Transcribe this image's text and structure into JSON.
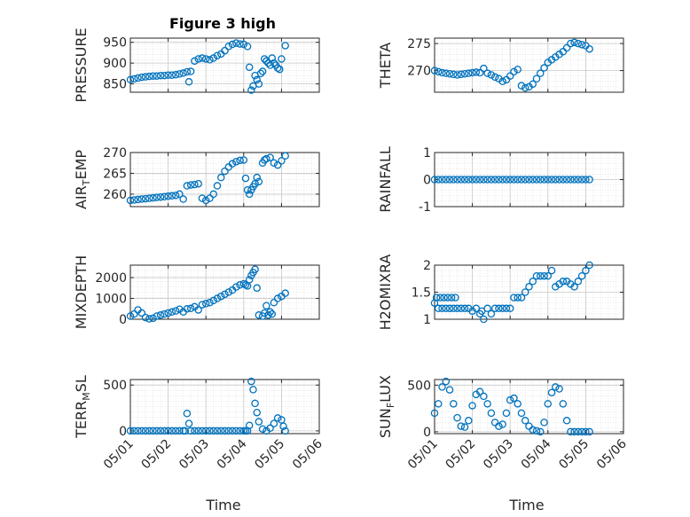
{
  "figure": {
    "title": "Figure 3 high",
    "xlabel": "Time"
  },
  "colors": {
    "marker": "#0072BD",
    "axis": "#262626",
    "grid": "#d9d9d9"
  },
  "chart_data": [
    {
      "id": "pressure",
      "type": "scatter",
      "ylabel": "PRESSURE",
      "ylim": [
        830,
        960
      ],
      "yticks": [
        850,
        900,
        950
      ],
      "xlim": [
        0,
        5
      ],
      "xticklabels": [
        "05/01",
        "05/02",
        "05/03",
        "05/04",
        "05/05",
        "05/06"
      ],
      "title": "Figure 3 high",
      "grid": true,
      "x": [
        0,
        0.1,
        0.2,
        0.3,
        0.4,
        0.5,
        0.6,
        0.7,
        0.8,
        0.9,
        1.0,
        1.1,
        1.2,
        1.3,
        1.4,
        1.5,
        1.55,
        1.6,
        1.7,
        1.8,
        1.9,
        2.0,
        2.1,
        2.2,
        2.3,
        2.4,
        2.5,
        2.6,
        2.7,
        2.8,
        2.9,
        3.0,
        3.1,
        3.15,
        3.2,
        3.25,
        3.3,
        3.35,
        3.4,
        3.45,
        3.5,
        3.55,
        3.6,
        3.65,
        3.7,
        3.75,
        3.8,
        3.85,
        3.9,
        3.95,
        4.0,
        4.1
      ],
      "y": [
        860,
        862,
        864,
        866,
        867,
        868,
        869,
        869,
        870,
        870,
        871,
        871,
        872,
        874,
        876,
        879,
        855,
        880,
        905,
        910,
        912,
        910,
        908,
        912,
        918,
        922,
        930,
        940,
        945,
        948,
        946,
        945,
        940,
        890,
        835,
        845,
        870,
        860,
        850,
        875,
        880,
        910,
        905,
        900,
        895,
        912,
        900,
        895,
        888,
        885,
        910,
        942
      ]
    },
    {
      "id": "theta",
      "type": "scatter",
      "ylabel": "THETA",
      "ylim": [
        266,
        276
      ],
      "yticks": [
        270,
        275
      ],
      "xlim": [
        0,
        5
      ],
      "grid": true,
      "x": [
        0,
        0.1,
        0.2,
        0.3,
        0.4,
        0.5,
        0.6,
        0.7,
        0.8,
        0.9,
        1.0,
        1.1,
        1.2,
        1.3,
        1.4,
        1.5,
        1.6,
        1.7,
        1.8,
        1.9,
        2.0,
        2.1,
        2.2,
        2.3,
        2.4,
        2.5,
        2.6,
        2.7,
        2.8,
        2.9,
        3.0,
        3.1,
        3.2,
        3.3,
        3.4,
        3.5,
        3.6,
        3.7,
        3.8,
        3.9,
        4.0,
        4.1
      ],
      "y": [
        270,
        269.8,
        269.6,
        269.5,
        269.4,
        269.3,
        269.2,
        269.3,
        269.4,
        269.5,
        269.6,
        269.7,
        269.6,
        270.4,
        269.5,
        269.2,
        268.8,
        268.5,
        268,
        268.3,
        269,
        269.8,
        270.2,
        267.2,
        266.8,
        267.0,
        267.5,
        268.5,
        269.5,
        270.5,
        271.5,
        272.0,
        272.5,
        273,
        273.5,
        274.2,
        275,
        275.2,
        275,
        274.8,
        274.6,
        274
      ]
    },
    {
      "id": "air_temp",
      "type": "scatter",
      "ylabel": "AIR_TEMP",
      "ylim": [
        257,
        270
      ],
      "yticks": [
        260,
        265,
        270
      ],
      "xlim": [
        0,
        5
      ],
      "grid": true,
      "x": [
        0,
        0.1,
        0.2,
        0.3,
        0.4,
        0.5,
        0.6,
        0.7,
        0.8,
        0.9,
        1.0,
        1.1,
        1.2,
        1.3,
        1.4,
        1.5,
        1.6,
        1.7,
        1.8,
        1.9,
        2.0,
        2.1,
        2.2,
        2.3,
        2.4,
        2.5,
        2.6,
        2.7,
        2.8,
        2.9,
        3.0,
        3.05,
        3.1,
        3.15,
        3.2,
        3.25,
        3.3,
        3.35,
        3.4,
        3.5,
        3.55,
        3.6,
        3.7,
        3.8,
        3.9,
        4.0,
        4.1
      ],
      "y": [
        258.5,
        258.6,
        258.7,
        258.8,
        258.9,
        259,
        259.1,
        259.2,
        259.3,
        259.4,
        259.5,
        259.6,
        259.7,
        260,
        258.8,
        262,
        262.2,
        262.3,
        262.5,
        259,
        258.5,
        259,
        260,
        262,
        264,
        265.5,
        266.5,
        267.3,
        267.8,
        268.1,
        268.2,
        263.8,
        261,
        260,
        261,
        261.8,
        262.5,
        264,
        263,
        267.5,
        268.2,
        268.5,
        268.8,
        267.5,
        267,
        268,
        269.2
      ]
    },
    {
      "id": "rainfall",
      "type": "scatter",
      "ylabel": "RAINFALL",
      "ylim": [
        -1,
        1
      ],
      "yticks": [
        -1,
        0,
        1
      ],
      "xlim": [
        0,
        5
      ],
      "grid": true,
      "x": [
        0,
        0.1,
        0.2,
        0.3,
        0.4,
        0.5,
        0.6,
        0.7,
        0.8,
        0.9,
        1.0,
        1.1,
        1.2,
        1.3,
        1.4,
        1.5,
        1.6,
        1.7,
        1.8,
        1.9,
        2.0,
        2.1,
        2.2,
        2.3,
        2.4,
        2.5,
        2.6,
        2.7,
        2.8,
        2.9,
        3.0,
        3.1,
        3.2,
        3.3,
        3.4,
        3.5,
        3.6,
        3.7,
        3.8,
        3.9,
        4.0,
        4.1
      ],
      "y": [
        0,
        0,
        0,
        0,
        0,
        0,
        0,
        0,
        0,
        0,
        0,
        0,
        0,
        0,
        0,
        0,
        0,
        0,
        0,
        0,
        0,
        0,
        0,
        0,
        0,
        0,
        0,
        0,
        0,
        0,
        0,
        0,
        0,
        0,
        0,
        0,
        0,
        0,
        0,
        0,
        0,
        0
      ]
    },
    {
      "id": "mixdepth",
      "type": "scatter",
      "ylabel": "MIXDEPTH",
      "ylim": [
        0,
        2600
      ],
      "yticks": [
        0,
        1000,
        2000
      ],
      "xlim": [
        0,
        5
      ],
      "grid": true,
      "x": [
        0,
        0.1,
        0.2,
        0.3,
        0.4,
        0.5,
        0.6,
        0.7,
        0.8,
        0.9,
        1.0,
        1.1,
        1.2,
        1.3,
        1.4,
        1.5,
        1.6,
        1.7,
        1.8,
        1.9,
        2.0,
        2.1,
        2.2,
        2.3,
        2.4,
        2.5,
        2.6,
        2.7,
        2.8,
        2.9,
        3.0,
        3.05,
        3.1,
        3.15,
        3.2,
        3.25,
        3.3,
        3.35,
        3.4,
        3.5,
        3.55,
        3.6,
        3.65,
        3.7,
        3.75,
        3.8,
        3.9,
        4.0,
        4.1
      ],
      "y": [
        150,
        250,
        450,
        300,
        80,
        20,
        50,
        150,
        200,
        250,
        300,
        350,
        400,
        480,
        350,
        500,
        520,
        600,
        450,
        700,
        750,
        800,
        900,
        1000,
        1100,
        1200,
        1300,
        1400,
        1550,
        1650,
        1700,
        1650,
        1600,
        1900,
        2100,
        2250,
        2400,
        1500,
        200,
        150,
        300,
        650,
        200,
        350,
        250,
        800,
        1000,
        1100,
        1250
      ]
    },
    {
      "id": "h2omixra",
      "type": "scatter",
      "ylabel": "H2OMIXRA",
      "ylim": [
        1,
        2
      ],
      "yticks": [
        1,
        1.5,
        2
      ],
      "xlim": [
        0,
        5
      ],
      "grid": true,
      "x": [
        0,
        0.05,
        0.1,
        0.15,
        0.2,
        0.25,
        0.3,
        0.35,
        0.4,
        0.45,
        0.5,
        0.55,
        0.6,
        0.7,
        0.8,
        0.9,
        1.0,
        1.1,
        1.2,
        1.25,
        1.3,
        1.4,
        1.5,
        1.6,
        1.7,
        1.8,
        1.9,
        2.0,
        2.1,
        2.2,
        2.3,
        2.4,
        2.5,
        2.6,
        2.7,
        2.8,
        2.9,
        3.0,
        3.1,
        3.2,
        3.3,
        3.4,
        3.5,
        3.6,
        3.7,
        3.8,
        3.9,
        4.0,
        4.1
      ],
      "y": [
        1.3,
        1.4,
        1.2,
        1.4,
        1.2,
        1.4,
        1.2,
        1.4,
        1.2,
        1.4,
        1.2,
        1.4,
        1.2,
        1.2,
        1.2,
        1.2,
        1.15,
        1.2,
        1.1,
        1.15,
        1.0,
        1.2,
        1.1,
        1.2,
        1.2,
        1.2,
        1.2,
        1.2,
        1.4,
        1.4,
        1.4,
        1.5,
        1.6,
        1.7,
        1.8,
        1.8,
        1.8,
        1.8,
        1.9,
        1.6,
        1.65,
        1.7,
        1.7,
        1.65,
        1.6,
        1.7,
        1.8,
        1.9,
        2.0
      ]
    },
    {
      "id": "terr_msl",
      "type": "scatter",
      "ylabel": "TERR_MSL",
      "ylim": [
        -30,
        560
      ],
      "yticks": [
        0,
        500
      ],
      "xlim": [
        0,
        5
      ],
      "grid": true,
      "x": [
        0,
        0.1,
        0.2,
        0.3,
        0.4,
        0.5,
        0.6,
        0.7,
        0.8,
        0.9,
        1.0,
        1.1,
        1.2,
        1.3,
        1.4,
        1.45,
        1.5,
        1.55,
        1.6,
        1.7,
        1.8,
        1.9,
        2.0,
        2.1,
        2.2,
        2.3,
        2.4,
        2.5,
        2.6,
        2.7,
        2.8,
        2.9,
        3.0,
        3.05,
        3.1,
        3.15,
        3.2,
        3.25,
        3.3,
        3.35,
        3.4,
        3.5,
        3.6,
        3.7,
        3.8,
        3.9,
        4.0,
        4.05,
        4.1
      ],
      "y": [
        0,
        0,
        0,
        0,
        0,
        0,
        0,
        0,
        0,
        0,
        0,
        0,
        0,
        0,
        0,
        0,
        190,
        80,
        0,
        0,
        0,
        0,
        0,
        0,
        0,
        0,
        0,
        0,
        0,
        0,
        0,
        0,
        0,
        0,
        0,
        60,
        540,
        450,
        300,
        200,
        100,
        20,
        0,
        30,
        80,
        140,
        120,
        50,
        0
      ]
    },
    {
      "id": "sun_flux",
      "type": "scatter",
      "ylabel": "SUN_FLUX",
      "ylim": [
        -20,
        560
      ],
      "yticks": [
        0,
        500
      ],
      "xlim": [
        0,
        5
      ],
      "grid": true,
      "x": [
        0,
        0.1,
        0.2,
        0.3,
        0.4,
        0.5,
        0.6,
        0.7,
        0.8,
        0.9,
        1.0,
        1.1,
        1.2,
        1.3,
        1.4,
        1.5,
        1.6,
        1.7,
        1.8,
        1.9,
        2.0,
        2.1,
        2.2,
        2.3,
        2.4,
        2.5,
        2.6,
        2.7,
        2.8,
        2.9,
        3.0,
        3.1,
        3.2,
        3.3,
        3.4,
        3.5,
        3.6,
        3.7,
        3.8,
        3.9,
        4.0,
        4.1
      ],
      "y": [
        200,
        300,
        480,
        540,
        450,
        300,
        150,
        60,
        50,
        120,
        280,
        400,
        430,
        380,
        300,
        200,
        100,
        60,
        80,
        200,
        340,
        360,
        300,
        200,
        120,
        60,
        20,
        10,
        0,
        100,
        300,
        420,
        480,
        460,
        300,
        120,
        0,
        0,
        0,
        0,
        0,
        0
      ]
    }
  ]
}
